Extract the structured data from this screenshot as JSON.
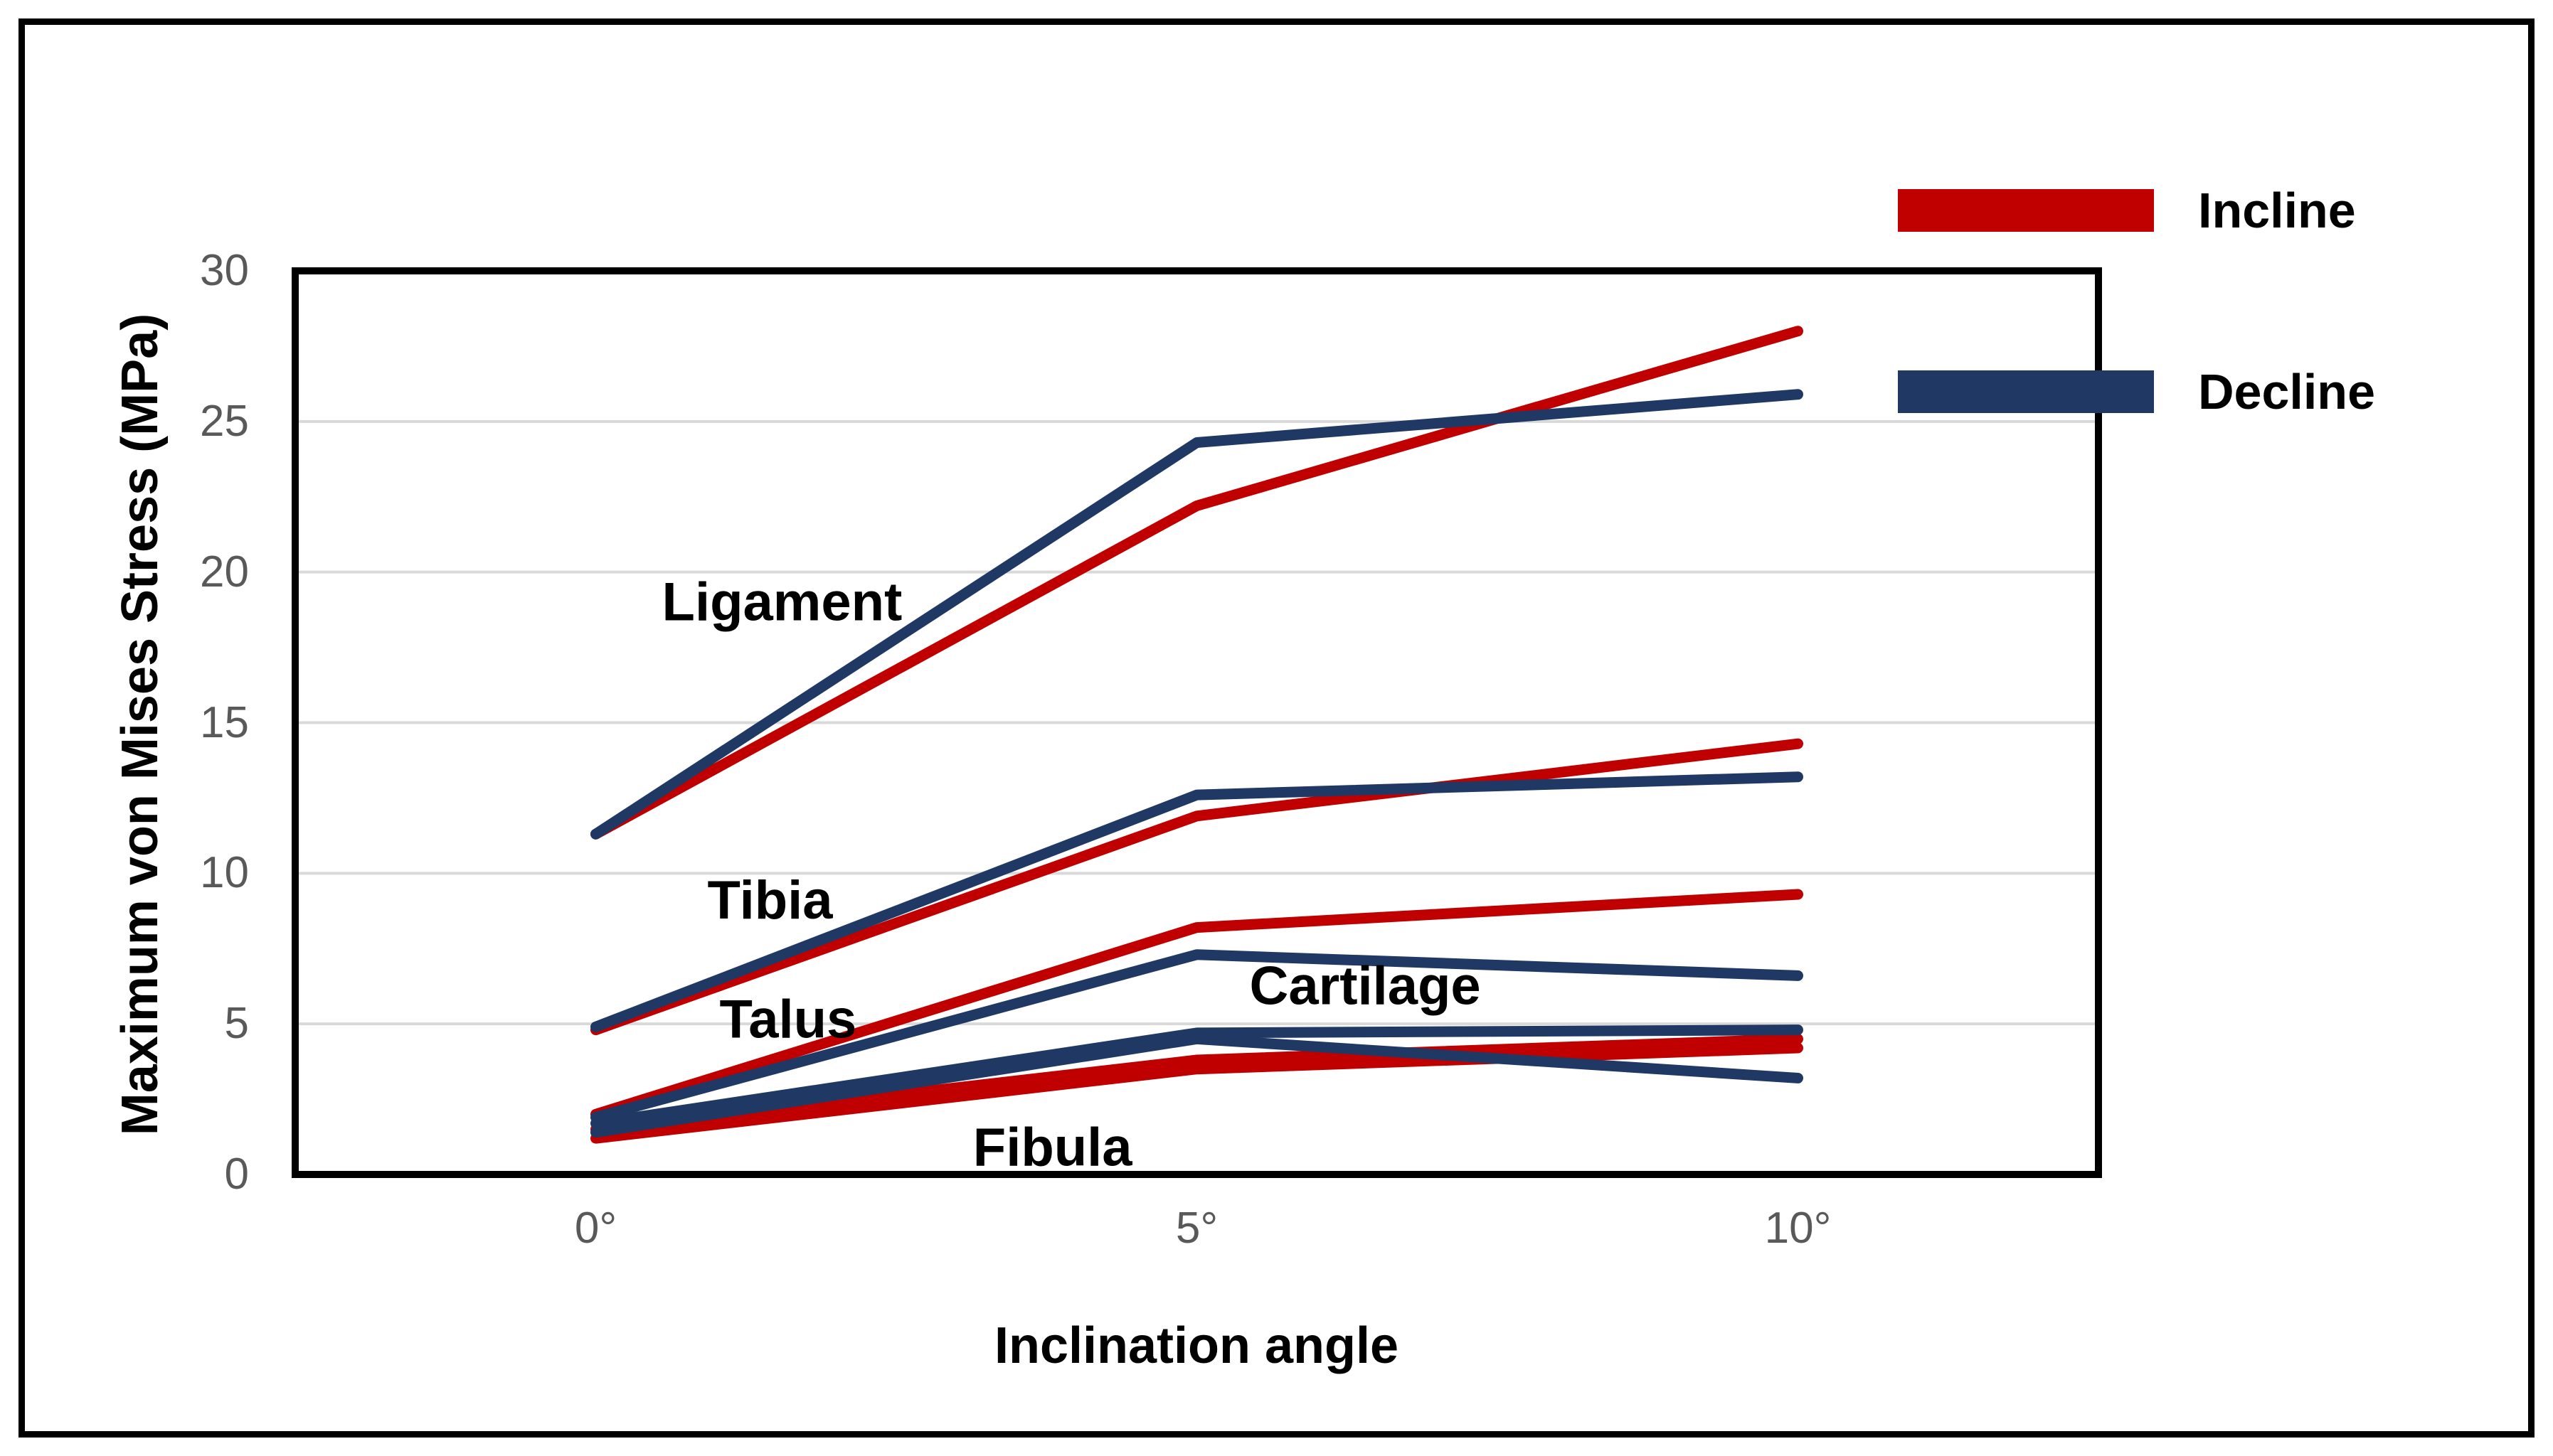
{
  "figure": {
    "background": "#FFFFFF",
    "border_color": "#000000"
  },
  "legend": {
    "position": "top-right",
    "items": [
      {
        "label": "Incline",
        "color": "#C00000"
      },
      {
        "label": "Decline",
        "color": "#1F3864"
      }
    ]
  },
  "axes": {
    "y_title": "Maximum von Mises Stress (MPa)",
    "x_title": "Inclination angle",
    "tick_color": "#595959",
    "grid_color": "#D9D9D9",
    "frame_color": "#000000",
    "y_ticks": [
      {
        "label": "0",
        "value": 0
      },
      {
        "label": "5",
        "value": 5
      },
      {
        "label": "10",
        "value": 10
      },
      {
        "label": "15",
        "value": 15
      },
      {
        "label": "20",
        "value": 20
      },
      {
        "label": "25",
        "value": 25
      },
      {
        "label": "30",
        "value": 30
      }
    ],
    "x_ticks": [
      "0°",
      "5°",
      "10°"
    ]
  },
  "chart_data": {
    "type": "line",
    "categories": [
      "0°",
      "5°",
      "10°"
    ],
    "xlabel": "Inclination angle",
    "ylabel": "Maximum von Mises Stress (MPa)",
    "ylim": [
      0,
      30
    ],
    "y_tick_step": 5,
    "grid": "horizontal",
    "legend_position": "top-right",
    "series": [
      {
        "tissue": "Ligament",
        "condition": "Incline",
        "name": "Ligament Incline",
        "color": "#C00000",
        "values": [
          11.3,
          22.2,
          28.0
        ]
      },
      {
        "tissue": "Ligament",
        "condition": "Decline",
        "name": "Ligament Decline",
        "color": "#1F3864",
        "values": [
          11.3,
          24.3,
          25.9
        ]
      },
      {
        "tissue": "Tibia",
        "condition": "Incline",
        "name": "Tibia Incline",
        "color": "#C00000",
        "values": [
          4.8,
          11.9,
          14.3
        ]
      },
      {
        "tissue": "Tibia",
        "condition": "Decline",
        "name": "Tibia Decline",
        "color": "#1F3864",
        "values": [
          4.9,
          12.6,
          13.2
        ]
      },
      {
        "tissue": "Talus",
        "condition": "Incline",
        "name": "Talus Incline",
        "color": "#C00000",
        "values": [
          2.0,
          8.2,
          9.3
        ]
      },
      {
        "tissue": "Talus",
        "condition": "Decline",
        "name": "Talus Decline",
        "color": "#1F3864",
        "values": [
          1.9,
          7.3,
          6.6
        ]
      },
      {
        "tissue": "Cartilage",
        "condition": "Incline",
        "name": "Cartilage Incline",
        "color": "#C00000",
        "values": [
          1.5,
          3.8,
          4.5
        ]
      },
      {
        "tissue": "Cartilage",
        "condition": "Decline",
        "name": "Cartilage Decline",
        "color": "#1F3864",
        "values": [
          1.7,
          4.7,
          4.8
        ]
      },
      {
        "tissue": "Fibula",
        "condition": "Incline",
        "name": "Fibula Incline",
        "color": "#C00000",
        "values": [
          1.2,
          3.5,
          4.2
        ]
      },
      {
        "tissue": "Fibula",
        "condition": "Decline",
        "name": "Fibula Decline",
        "color": "#1F3864",
        "values": [
          1.4,
          4.5,
          3.2
        ]
      }
    ],
    "annotations": [
      {
        "label": "Ligament",
        "x_deg": 1.55,
        "y_val": 19.0
      },
      {
        "label": "Tibia",
        "x_deg": 1.45,
        "y_val": 9.1
      },
      {
        "label": "Talus",
        "x_deg": 1.6,
        "y_val": 5.15
      },
      {
        "label": "Cartilage",
        "x_deg": 6.4,
        "y_val": 6.25
      },
      {
        "label": "Fibula",
        "x_deg": 3.8,
        "y_val": 0.9
      }
    ]
  }
}
